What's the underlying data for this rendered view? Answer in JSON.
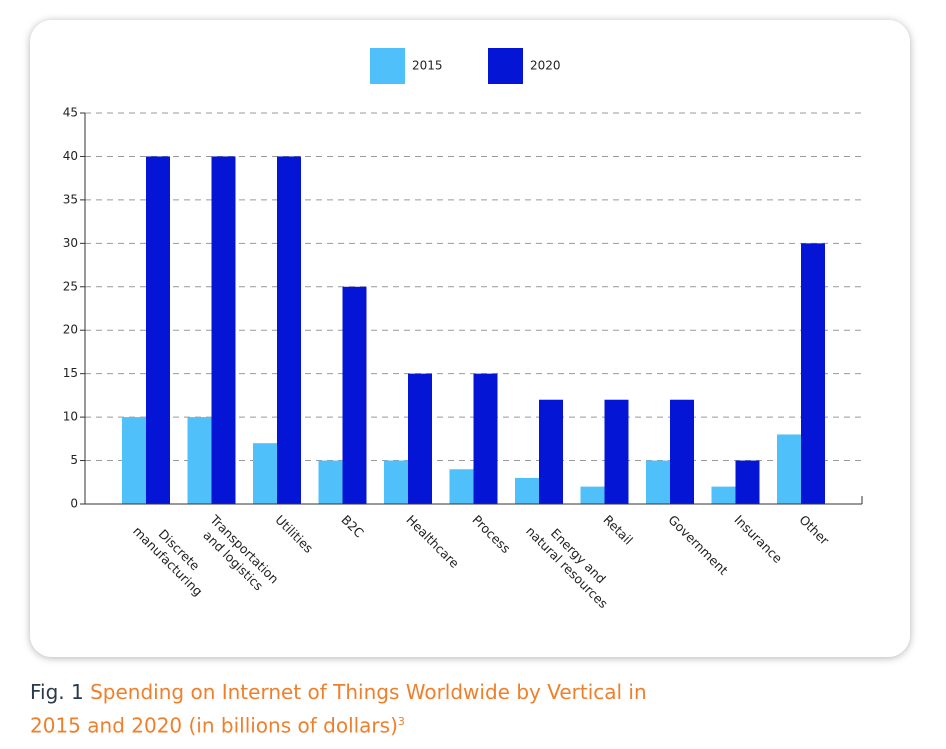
{
  "chart_data": {
    "type": "bar",
    "categories": [
      "Discrete\nmanufacturing",
      "Transportation\nand logistics",
      "Utilities",
      "B2C",
      "Healthcare",
      "Process",
      "Energy and\nnatural resources",
      "Retail",
      "Government",
      "Insurance",
      "Other"
    ],
    "series": [
      {
        "name": "2015",
        "color": "#4fc0fa",
        "values": [
          10,
          10,
          7,
          5,
          5,
          4,
          3,
          2,
          5,
          2,
          8
        ]
      },
      {
        "name": "2020",
        "color": "#0515d6",
        "values": [
          40,
          40,
          40,
          25,
          15,
          15,
          12,
          12,
          12,
          5,
          30
        ]
      }
    ],
    "ylim": [
      0,
      45
    ],
    "yticks": [
      0,
      5,
      10,
      15,
      20,
      25,
      30,
      35,
      40,
      45
    ],
    "grid": true,
    "legend": "top"
  },
  "caption": {
    "label": "Fig. 1",
    "text": "Spending on Internet of Things Worldwide by Vertical in 2015 and 2020 (in billions of dollars)",
    "note": "3"
  }
}
